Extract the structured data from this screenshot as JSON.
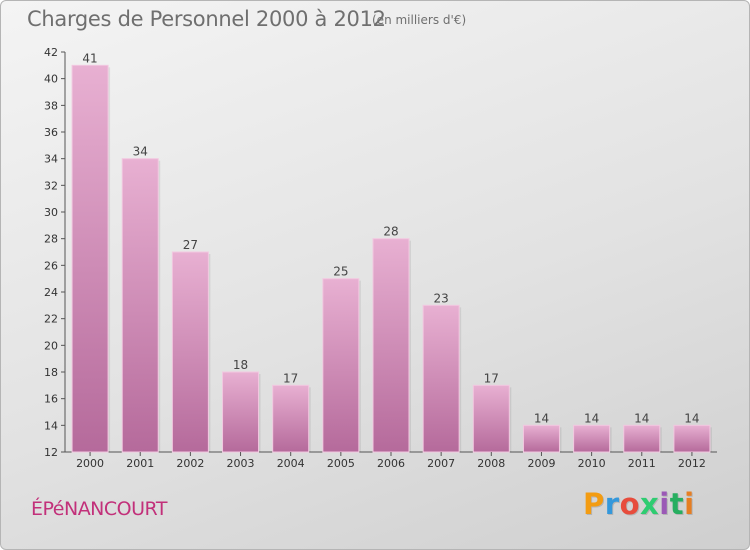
{
  "header": {
    "title": "Charges de Personnel 2000 à 2012",
    "subtitle": "(en milliers d'€)"
  },
  "footer": {
    "commune": "ÉPéNANCOURT",
    "logo": {
      "letters": [
        "P",
        "r",
        "o",
        "x",
        "i",
        "t",
        "i"
      ],
      "colors": [
        "#f39c12",
        "#3498db",
        "#e74c3c",
        "#2ecc71",
        "#9b59b6",
        "#27ae60",
        "#e67e22"
      ]
    }
  },
  "chart_data": {
    "type": "bar",
    "title": "Charges de Personnel 2000 à 2012",
    "subtitle": "(en milliers d'€)",
    "categories": [
      "2000",
      "2001",
      "2002",
      "2003",
      "2004",
      "2005",
      "2006",
      "2007",
      "2008",
      "2009",
      "2010",
      "2011",
      "2012"
    ],
    "values": [
      41,
      34,
      27,
      18,
      17,
      25,
      28,
      23,
      17,
      14,
      14,
      14,
      14
    ],
    "ylim": [
      12,
      42
    ],
    "yticks": [
      12,
      14,
      16,
      18,
      20,
      22,
      24,
      26,
      28,
      30,
      32,
      34,
      36,
      38,
      40,
      42
    ],
    "grid": false,
    "bar_color": "#d68fbd",
    "bar_top_color": "#e8b0d2",
    "bar_bottom_color": "#b56a9b"
  }
}
